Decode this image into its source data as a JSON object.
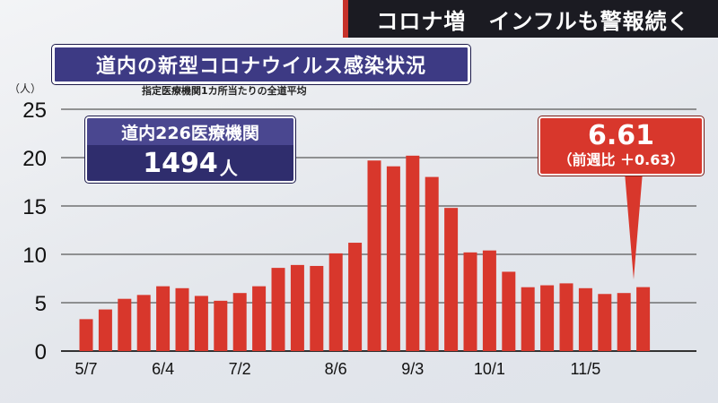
{
  "headline": "コロナ増　インフルも警報続く",
  "title": "道内の新型コロナウイルス感染状況",
  "subtitle": "指定医療機関1カ所当たりの全道平均",
  "unit": "（人）",
  "info_box": {
    "label": "道内226医療機関",
    "value": "1494",
    "unit": "人"
  },
  "callout": {
    "value": "6.61",
    "change": "（前週比 ＋0.63）"
  },
  "colors": {
    "bar": "#d8372c",
    "title_bg": "#3d3a84",
    "headline_bg": "#1b1b22"
  },
  "chart_data": {
    "type": "bar",
    "title": "道内の新型コロナウイルス感染状況",
    "ylabel": "（人）",
    "ylim": [
      0,
      25
    ],
    "yticks": [
      0,
      5,
      10,
      15,
      20,
      25
    ],
    "grid": true,
    "x_tick_labels": [
      "5/7",
      "6/4",
      "7/2",
      "8/6",
      "9/3",
      "10/1",
      "11/5"
    ],
    "x_tick_indices": [
      0,
      4,
      8,
      13,
      17,
      21,
      26
    ],
    "values": [
      3.3,
      4.3,
      5.4,
      5.8,
      6.7,
      6.5,
      5.7,
      5.2,
      6.0,
      6.7,
      8.6,
      8.9,
      8.8,
      10.1,
      11.2,
      19.7,
      19.1,
      20.2,
      18.0,
      14.8,
      10.2,
      10.4,
      8.2,
      6.6,
      6.8,
      7.0,
      6.5,
      5.9,
      6.0,
      6.61
    ]
  }
}
